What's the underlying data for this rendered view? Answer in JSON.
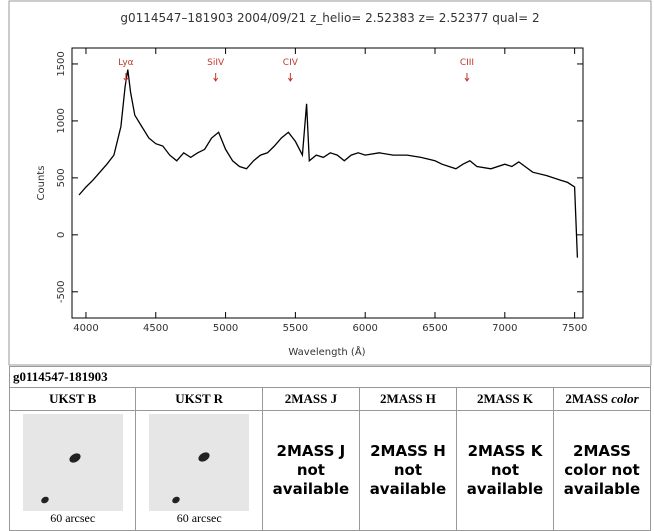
{
  "chart_data": {
    "type": "line",
    "title": "g0114547–181903 2004/09/21 z_helio= 2.52383 z= 2.52377 qual= 2",
    "x_label": "Wavelength (Å)",
    "y_label": "Counts",
    "x": [
      3950,
      4000,
      4050,
      4100,
      4150,
      4200,
      4250,
      4280,
      4300,
      4320,
      4350,
      4400,
      4450,
      4500,
      4550,
      4600,
      4650,
      4700,
      4750,
      4800,
      4850,
      4900,
      4950,
      5000,
      5050,
      5100,
      5150,
      5200,
      5250,
      5300,
      5350,
      5400,
      5450,
      5500,
      5550,
      5580,
      5600,
      5650,
      5700,
      5750,
      5800,
      5850,
      5900,
      5950,
      6000,
      6100,
      6200,
      6300,
      6400,
      6500,
      6550,
      6600,
      6650,
      6700,
      6750,
      6800,
      6900,
      7000,
      7050,
      7100,
      7200,
      7300,
      7400,
      7450,
      7500,
      7520
    ],
    "series": [
      {
        "name": "Counts",
        "color": "#000000",
        "values": [
          350,
          420,
          480,
          550,
          620,
          700,
          950,
          1300,
          1450,
          1250,
          1050,
          950,
          850,
          800,
          780,
          700,
          650,
          720,
          680,
          720,
          750,
          850,
          900,
          750,
          650,
          600,
          580,
          650,
          700,
          720,
          780,
          850,
          900,
          820,
          700,
          1150,
          650,
          700,
          680,
          720,
          700,
          650,
          700,
          720,
          700,
          720,
          700,
          700,
          680,
          650,
          620,
          600,
          580,
          620,
          650,
          600,
          580,
          620,
          600,
          640,
          550,
          520,
          480,
          460,
          420,
          -200
        ]
      }
    ],
    "annotations": [
      {
        "text": "Lyα",
        "x": 4286,
        "color": "#c0392b"
      },
      {
        "text": "SiIV",
        "x": 4929,
        "color": "#c0392b"
      },
      {
        "text": "CIV",
        "x": 5464,
        "color": "#c0392b"
      },
      {
        "text": "CIII",
        "x": 6729,
        "color": "#c0392b"
      }
    ],
    "xlim": [
      3900,
      7560
    ],
    "ylim": [
      -730,
      1640
    ],
    "xticks": [
      4000,
      4500,
      5000,
      5500,
      6000,
      6500,
      7000,
      7500
    ],
    "yticks": [
      -500,
      0,
      500,
      1000,
      1500
    ]
  },
  "table": {
    "object": "g0114547-181903",
    "headers": [
      {
        "text": "UKST B"
      },
      {
        "text": "UKST R"
      },
      {
        "text": "2MASS J"
      },
      {
        "text": "2MASS H"
      },
      {
        "text": "2MASS K"
      },
      {
        "text": "2MASS",
        "em": "color"
      }
    ],
    "cells": [
      {
        "caption": "60 arcsec"
      },
      {
        "caption": "60 arcsec"
      },
      {
        "lines": [
          "2MASS J",
          "not",
          "available"
        ]
      },
      {
        "lines": [
          "2MASS H",
          "not",
          "available"
        ]
      },
      {
        "lines": [
          "2MASS K",
          "not",
          "available"
        ]
      },
      {
        "lines": [
          "2MASS",
          "color not",
          "available"
        ]
      }
    ]
  }
}
